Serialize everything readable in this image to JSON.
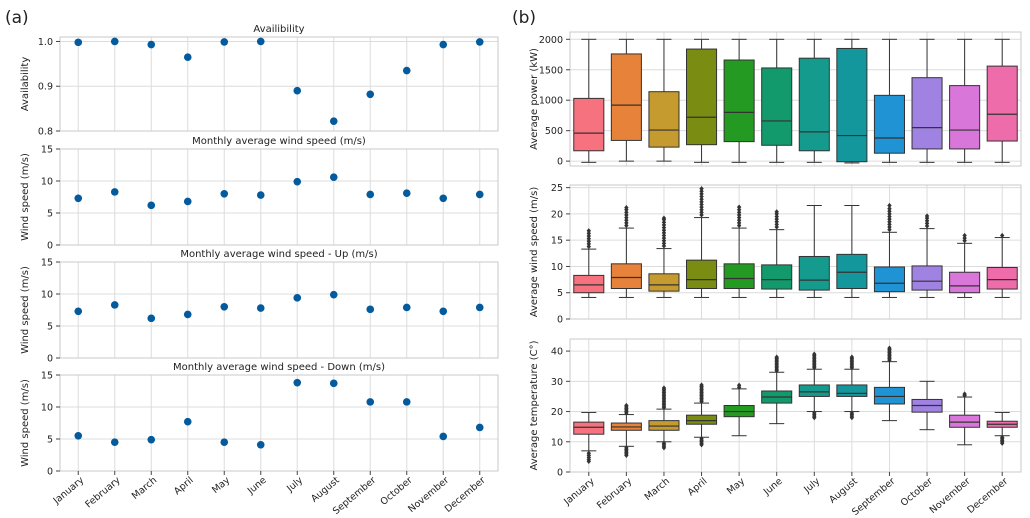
{
  "panel_labels": [
    "(a)",
    "(b)"
  ],
  "months": [
    "January",
    "February",
    "March",
    "April",
    "May",
    "June",
    "July",
    "August",
    "September",
    "October",
    "November",
    "December"
  ],
  "chart_data": [
    {
      "type": "scatter",
      "id": "a1",
      "panel": "(a)",
      "title": "Availibility",
      "ylabel": "Availability",
      "ylim": [
        0.8,
        1.01
      ],
      "yticks": [
        0.8,
        0.9,
        1.0
      ],
      "ytick_labels": [
        "0.8",
        "0.9",
        "1.0"
      ],
      "grid": true,
      "color": "#035a9c",
      "values": [
        0.998,
        1.0,
        0.993,
        0.965,
        0.999,
        1.0,
        0.89,
        0.822,
        0.882,
        0.935,
        0.993,
        0.999
      ]
    },
    {
      "type": "scatter",
      "id": "a2",
      "panel": "(a)",
      "title": "Monthly average wind speed (m/s)",
      "ylabel": "Wind speed (m/s)",
      "ylim": [
        0,
        15
      ],
      "yticks": [
        0,
        5,
        10,
        15
      ],
      "ytick_labels": [
        "0",
        "5",
        "10",
        "15"
      ],
      "grid": true,
      "color": "#035a9c",
      "values": [
        7.3,
        8.3,
        6.2,
        6.8,
        8.0,
        7.8,
        9.9,
        10.6,
        7.9,
        8.1,
        7.3,
        7.9
      ]
    },
    {
      "type": "scatter",
      "id": "a3",
      "panel": "(a)",
      "title": "Monthly average wind speed - Up (m/s)",
      "ylabel": "Wind speed (m/s)",
      "ylim": [
        0,
        15
      ],
      "yticks": [
        0,
        5,
        10,
        15
      ],
      "ytick_labels": [
        "0",
        "5",
        "10",
        "15"
      ],
      "grid": true,
      "color": "#035a9c",
      "values": [
        7.3,
        8.3,
        6.2,
        6.8,
        8.0,
        7.8,
        9.4,
        9.9,
        7.6,
        7.9,
        7.3,
        7.9
      ]
    },
    {
      "type": "scatter",
      "id": "a4",
      "panel": "(a)",
      "title": "Monthly average wind speed - Down (m/s)",
      "ylabel": "Wind speed (m/s)",
      "ylim": [
        0,
        15
      ],
      "yticks": [
        0,
        5,
        10,
        15
      ],
      "ytick_labels": [
        "0",
        "5",
        "10",
        "15"
      ],
      "grid": true,
      "color": "#035a9c",
      "values": [
        5.5,
        4.5,
        4.9,
        7.7,
        4.5,
        4.1,
        13.8,
        13.7,
        10.8,
        10.8,
        5.4,
        6.8
      ]
    },
    {
      "type": "box",
      "id": "b1",
      "panel": "(b)",
      "title": "",
      "ylabel": "Average power (kW)",
      "ylim": [
        -80,
        2120
      ],
      "yticks": [
        0,
        500,
        1000,
        1500,
        2000
      ],
      "ytick_labels": [
        "0",
        "500",
        "1000",
        "1500",
        "2000"
      ],
      "grid": true,
      "colors": [
        "#f7727f",
        "#e7823a",
        "#c59a2f",
        "#7a8c11",
        "#249a22",
        "#139a6c",
        "#159b8e",
        "#13979d",
        "#1f93d3",
        "#a082e2",
        "#d876d9",
        "#ef6cab"
      ],
      "boxes": [
        {
          "whislo": -20,
          "q1": 170,
          "med": 460,
          "q3": 1030,
          "whishi": 2000,
          "fliers": []
        },
        {
          "whislo": 0,
          "q1": 340,
          "med": 920,
          "q3": 1760,
          "whishi": 2000,
          "fliers": []
        },
        {
          "whislo": 0,
          "q1": 230,
          "med": 510,
          "q3": 1140,
          "whishi": 2000,
          "fliers": []
        },
        {
          "whislo": -20,
          "q1": 270,
          "med": 720,
          "q3": 1840,
          "whishi": 2000,
          "fliers": []
        },
        {
          "whislo": -20,
          "q1": 320,
          "med": 800,
          "q3": 1660,
          "whishi": 2000,
          "fliers": []
        },
        {
          "whislo": -20,
          "q1": 260,
          "med": 660,
          "q3": 1530,
          "whishi": 2000,
          "fliers": []
        },
        {
          "whislo": -20,
          "q1": 170,
          "med": 480,
          "q3": 1690,
          "whishi": 2000,
          "fliers": []
        },
        {
          "whislo": -30,
          "q1": -10,
          "med": 420,
          "q3": 1850,
          "whishi": 2000,
          "fliers": []
        },
        {
          "whislo": -20,
          "q1": 130,
          "med": 380,
          "q3": 1080,
          "whishi": 2000,
          "fliers": []
        },
        {
          "whislo": -20,
          "q1": 200,
          "med": 550,
          "q3": 1370,
          "whishi": 2000,
          "fliers": []
        },
        {
          "whislo": -20,
          "q1": 200,
          "med": 510,
          "q3": 1240,
          "whishi": 2000,
          "fliers": []
        },
        {
          "whislo": -20,
          "q1": 330,
          "med": 770,
          "q3": 1560,
          "whishi": 2000,
          "fliers": []
        }
      ]
    },
    {
      "type": "box",
      "id": "b2",
      "panel": "(b)",
      "title": "",
      "ylabel": "Average wind speed (m/s)",
      "ylim": [
        0,
        25.5
      ],
      "yticks": [
        0,
        5,
        10,
        15,
        20,
        25
      ],
      "ytick_labels": [
        "0",
        "5",
        "10",
        "15",
        "20",
        "25"
      ],
      "grid": true,
      "colors": [
        "#f7727f",
        "#e7823a",
        "#c59a2f",
        "#7a8c11",
        "#249a22",
        "#139a6c",
        "#159b8e",
        "#13979d",
        "#1f93d3",
        "#a082e2",
        "#d876d9",
        "#ef6cab"
      ],
      "boxes": [
        {
          "whislo": 4.1,
          "q1": 5.0,
          "med": 6.5,
          "q3": 8.3,
          "whishi": 13.3,
          "fliers": [
            13.8,
            14.3,
            14.8,
            15.3,
            15.8,
            16.3,
            16.8
          ]
        },
        {
          "whislo": 4.1,
          "q1": 5.8,
          "med": 7.9,
          "q3": 10.5,
          "whishi": 17.3,
          "fliers": [
            17.8,
            18.3,
            18.8,
            19.3,
            19.8,
            20.3,
            20.8,
            21.2
          ]
        },
        {
          "whislo": 4.1,
          "q1": 5.3,
          "med": 6.5,
          "q3": 8.6,
          "whishi": 13.4,
          "fliers": [
            13.9,
            14.4,
            14.9,
            15.4,
            15.9,
            16.4,
            16.9,
            17.4,
            17.9,
            18.4,
            18.9,
            19.2
          ]
        },
        {
          "whislo": 4.1,
          "q1": 5.8,
          "med": 7.5,
          "q3": 11.2,
          "whishi": 19.3,
          "fliers": [
            19.8,
            20.3,
            20.8,
            21.3,
            21.8,
            22.3,
            22.8,
            23.3,
            23.8,
            24.3,
            24.8
          ]
        },
        {
          "whislo": 4.1,
          "q1": 5.8,
          "med": 7.7,
          "q3": 10.5,
          "whishi": 17.3,
          "fliers": [
            17.8,
            18.3,
            18.8,
            19.3,
            19.8,
            20.3,
            20.8,
            21.3
          ]
        },
        {
          "whislo": 4.1,
          "q1": 5.7,
          "med": 7.5,
          "q3": 10.3,
          "whishi": 17.0,
          "fliers": [
            17.5,
            18.0,
            18.5,
            19.0,
            19.5,
            20.0,
            20.4
          ]
        },
        {
          "whislo": 4.1,
          "q1": 5.5,
          "med": 7.4,
          "q3": 11.9,
          "whishi": 21.6,
          "fliers": []
        },
        {
          "whislo": 4.1,
          "q1": 5.8,
          "med": 8.9,
          "q3": 12.3,
          "whishi": 21.6,
          "fliers": []
        },
        {
          "whislo": 4.1,
          "q1": 5.2,
          "med": 6.8,
          "q3": 9.9,
          "whishi": 16.5,
          "fliers": [
            17.0,
            17.5,
            18.0,
            18.5,
            19.0,
            19.5,
            20.0,
            20.5,
            21.0,
            21.6
          ]
        },
        {
          "whislo": 4.1,
          "q1": 5.5,
          "med": 7.2,
          "q3": 10.1,
          "whishi": 17.2,
          "fliers": [
            17.7,
            18.2,
            18.7,
            19.2,
            19.6
          ]
        },
        {
          "whislo": 4.1,
          "q1": 5.0,
          "med": 6.3,
          "q3": 8.9,
          "whishi": 14.4,
          "fliers": [
            14.9,
            15.4,
            15.9
          ]
        },
        {
          "whislo": 4.1,
          "q1": 5.7,
          "med": 7.5,
          "q3": 9.8,
          "whishi": 15.5,
          "fliers": [
            15.9
          ]
        }
      ]
    },
    {
      "type": "box",
      "id": "b3",
      "panel": "(b)",
      "title": "",
      "ylabel": "Average temperature (C°)",
      "ylim": [
        0,
        44
      ],
      "yticks": [
        0,
        10,
        20,
        30,
        40
      ],
      "ytick_labels": [
        "0",
        "10",
        "20",
        "30",
        "40"
      ],
      "grid": true,
      "colors": [
        "#f7727f",
        "#e7823a",
        "#c59a2f",
        "#7a8c11",
        "#249a22",
        "#139a6c",
        "#159b8e",
        "#13979d",
        "#1f93d3",
        "#a082e2",
        "#d876d9",
        "#ef6cab"
      ],
      "boxes": [
        {
          "whislo": 7.0,
          "q1": 12.5,
          "med": 14.8,
          "q3": 16.5,
          "whishi": 19.7,
          "fliers": [
            6.2,
            5.5,
            4.8,
            4.1,
            3.5
          ]
        },
        {
          "whislo": 8.5,
          "q1": 13.8,
          "med": 14.9,
          "q3": 16.2,
          "whishi": 19.0,
          "fliers": [
            19.5,
            20.0,
            20.5,
            21.0,
            21.5,
            22.0,
            8.0,
            7.5,
            7.0,
            6.5,
            6.0,
            5.5
          ]
        },
        {
          "whislo": 10.0,
          "q1": 13.8,
          "med": 15.2,
          "q3": 17.0,
          "whishi": 20.8,
          "fliers": [
            21.3,
            21.8,
            22.3,
            22.8,
            23.3,
            23.8,
            24.3,
            24.8,
            25.3,
            25.8,
            26.3,
            26.8,
            27.3,
            27.8,
            9.5,
            9.0,
            8.5,
            8.0
          ]
        },
        {
          "whislo": 11.5,
          "q1": 15.8,
          "med": 17.0,
          "q3": 18.8,
          "whishi": 22.8,
          "fliers": [
            23.3,
            23.8,
            24.3,
            24.8,
            25.3,
            25.8,
            26.3,
            26.8,
            27.3,
            27.8,
            28.3,
            28.8,
            11.0,
            10.5,
            10.0,
            9.5,
            9.0
          ]
        },
        {
          "whislo": 12.0,
          "q1": 18.3,
          "med": 20.0,
          "q3": 22.0,
          "whishi": 27.5,
          "fliers": [
            28.0,
            28.7
          ]
        },
        {
          "whislo": 16.0,
          "q1": 22.8,
          "med": 24.8,
          "q3": 26.8,
          "whishi": 33.0,
          "fliers": [
            33.5,
            34.0,
            34.5,
            35.0,
            35.5,
            36.0,
            36.5,
            37.0,
            37.5,
            38.0
          ]
        },
        {
          "whislo": 20.0,
          "q1": 25.0,
          "med": 26.5,
          "q3": 28.8,
          "whishi": 34.0,
          "fliers": [
            34.5,
            35.0,
            35.5,
            36.0,
            36.5,
            37.0,
            37.5,
            38.0,
            38.5,
            39.0,
            19.5,
            19.0,
            18.5,
            18.0
          ]
        },
        {
          "whislo": 20.0,
          "q1": 25.0,
          "med": 26.0,
          "q3": 28.8,
          "whishi": 34.0,
          "fliers": [
            34.5,
            35.0,
            35.5,
            36.0,
            36.5,
            37.0,
            37.5,
            38.0,
            19.5,
            19.0,
            18.5,
            18.0
          ]
        },
        {
          "whislo": 17.0,
          "q1": 22.5,
          "med": 25.0,
          "q3": 28.0,
          "whishi": 36.5,
          "fliers": [
            37.0,
            37.5,
            38.0,
            38.5,
            39.0,
            39.5,
            40.0,
            40.5,
            41.0
          ]
        },
        {
          "whislo": 14.0,
          "q1": 19.8,
          "med": 22.0,
          "q3": 24.0,
          "whishi": 30.0,
          "fliers": []
        },
        {
          "whislo": 9.0,
          "q1": 14.8,
          "med": 16.5,
          "q3": 18.8,
          "whishi": 24.8,
          "fliers": [
            25.3,
            25.8
          ]
        },
        {
          "whislo": 12.0,
          "q1": 14.8,
          "med": 15.8,
          "q3": 16.8,
          "whishi": 19.7,
          "fliers": [
            11.5,
            11.0,
            10.5,
            10.0,
            9.5
          ]
        }
      ]
    }
  ]
}
